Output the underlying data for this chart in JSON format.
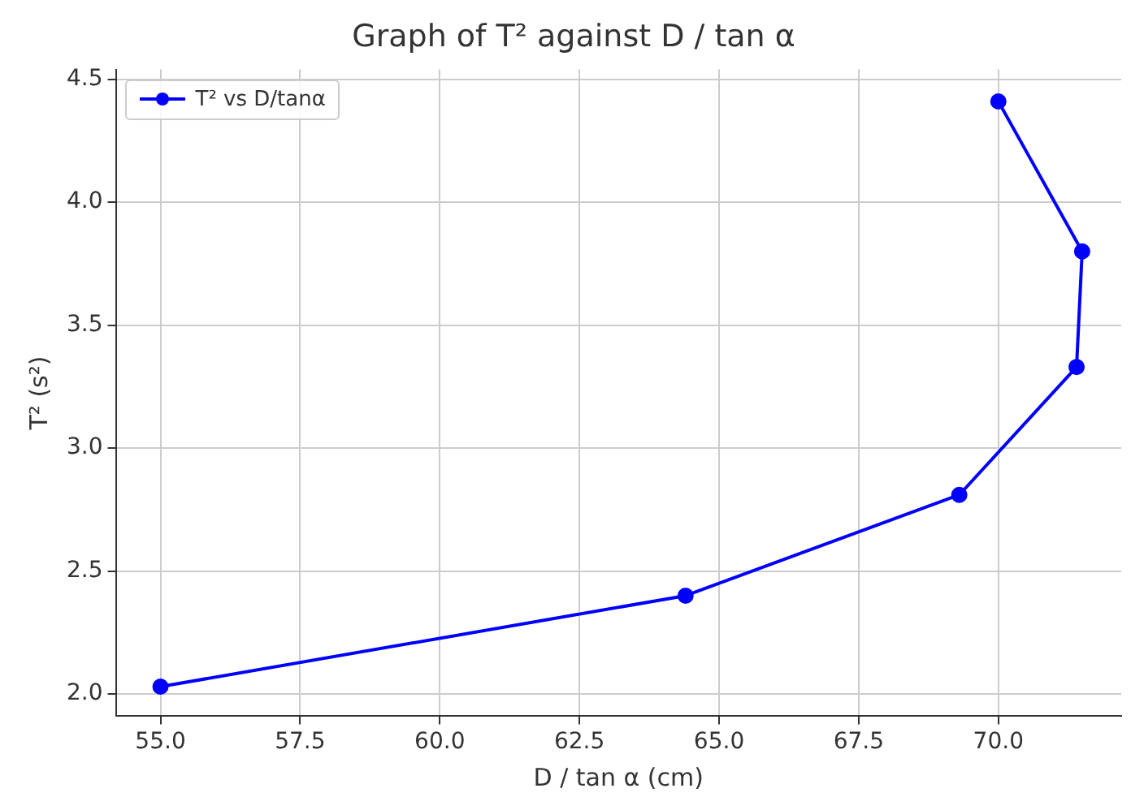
{
  "chart_data": {
    "type": "line",
    "title": "Graph of T² against D / tan α",
    "xlabel": "D / tan α (cm)",
    "ylabel": "T² (s²)",
    "x": [
      55.0,
      64.4,
      69.3,
      71.4,
      71.5,
      70.0
    ],
    "series": [
      {
        "name": "T² vs D/tanα",
        "color": "#0000ff",
        "values": [
          2.03,
          2.4,
          2.81,
          3.33,
          3.8,
          4.41
        ]
      }
    ],
    "xlim": [
      54.2,
      72.2
    ],
    "xticks": [
      {
        "value": 55,
        "label": "55.0"
      },
      57.5,
      {
        "value": 60,
        "label": "60.0"
      },
      62.5,
      {
        "value": 65,
        "label": "65.0"
      },
      67.5,
      {
        "value": 70,
        "label": "70.0"
      }
    ],
    "ylim": [
      1.91,
      4.54
    ],
    "yticks": [
      {
        "value": 2,
        "label": "2.0"
      },
      2.5,
      {
        "value": 3,
        "label": "3.0"
      },
      3.5,
      {
        "value": 4,
        "label": "4.0"
      },
      4.5
    ],
    "grid": true,
    "legend": "top left",
    "marker": "circle",
    "line_style": "solid"
  }
}
